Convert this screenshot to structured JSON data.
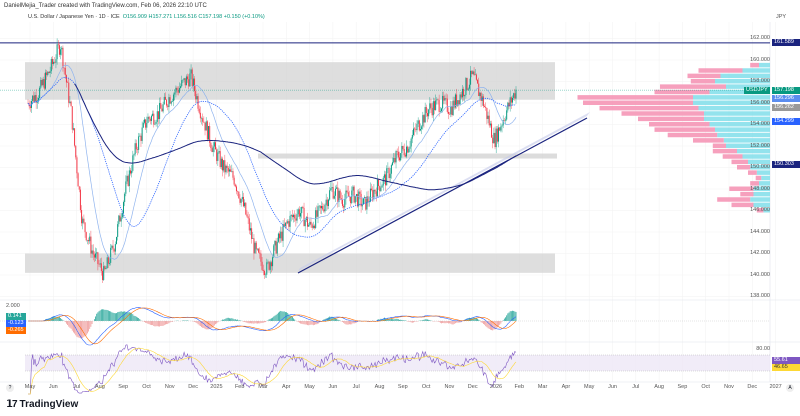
{
  "header": {
    "attribution": "DanielMejia_Trader created with TradingView.com, Feb 06, 2026 22:10 UTC"
  },
  "symbol": {
    "name": "U.S. Dollar / Japanese Yen · 1D · ICE",
    "open": "O156.909",
    "high": "H157.271",
    "low": "L156.516",
    "close": "C157.198",
    "change": "+0.150 (+0.10%)",
    "currency": "JPY"
  },
  "price_axis": {
    "ticks": [
      "162.000",
      "160.000",
      "158.000",
      "156.000",
      "154.000",
      "152.000",
      "150.000",
      "148.000",
      "146.000",
      "144.000",
      "142.000",
      "140.000",
      "138.000"
    ],
    "labels": [
      {
        "text": "161.589",
        "color": "#1a237e",
        "price": 161.589
      },
      {
        "text": "USDJPY",
        "color": "#089981",
        "price": 157.198,
        "prefix": true
      },
      {
        "text": "157.198",
        "color": "#089981",
        "price": 157.198
      },
      {
        "text": "156.296",
        "color": "#5b8def",
        "price": 156.4
      },
      {
        "text": "156.262",
        "color": "#999999",
        "price": 155.6
      },
      {
        "text": "154.299",
        "color": "#2962ff",
        "price": 154.299
      },
      {
        "text": "150.303",
        "color": "#1a237e",
        "price": 150.303
      }
    ]
  },
  "macd": {
    "top_tick": "2.000",
    "labels": [
      {
        "text": "0.141",
        "color": "#26a69a"
      },
      {
        "text": "-0.123",
        "color": "#2962ff"
      },
      {
        "text": "-0.265",
        "color": "#ff6d00"
      }
    ]
  },
  "rsi": {
    "top_tick": "80.00",
    "labels": [
      {
        "text": "55.61",
        "color": "#7e57c2"
      },
      {
        "text": "46.65",
        "color": "#fdd835"
      }
    ]
  },
  "time_axis": [
    "May",
    "Jun",
    "Jul",
    "Aug",
    "Sep",
    "Oct",
    "Nov",
    "Dec",
    "2025",
    "Feb",
    "Mar",
    "Apr",
    "May",
    "Jun",
    "Jul",
    "Aug",
    "Sep",
    "Oct",
    "Nov",
    "Dec",
    "2026",
    "Feb",
    "Mar",
    "Apr",
    "May",
    "Jun",
    "Jul",
    "Aug",
    "Sep",
    "Oct",
    "Nov",
    "Dec",
    "2027"
  ],
  "price_path": [
    156,
    157,
    159,
    161.5,
    155,
    145,
    142,
    140,
    143,
    148,
    152,
    154.5,
    155,
    156.5,
    157.5,
    158.5,
    155,
    152,
    150,
    149,
    146,
    142,
    140.5,
    143,
    145,
    146,
    144.5,
    146,
    148,
    147,
    147.5,
    146.5,
    148,
    149,
    151,
    152,
    154,
    155.5,
    156,
    155.5,
    157,
    158.5,
    156,
    152.5,
    155,
    157.2
  ],
  "volume_profile": {
    "levels": [
      159.5,
      159,
      158.5,
      158,
      157.5,
      157,
      156.5,
      156,
      155.5,
      155,
      154.5,
      154,
      153.5,
      153,
      152.5,
      152,
      151.5,
      151,
      150.5,
      150,
      149.5,
      149,
      148.5,
      148,
      147.5,
      147,
      146.5,
      146
    ],
    "sell": [
      8,
      40,
      30,
      22,
      60,
      50,
      105,
      100,
      90,
      75,
      60,
      55,
      55,
      45,
      28,
      12,
      22,
      18,
      15,
      12,
      8,
      5,
      8,
      22,
      12,
      30,
      20,
      6
    ],
    "buy": [
      10,
      25,
      45,
      50,
      40,
      55,
      70,
      70,
      65,
      60,
      60,
      55,
      50,
      48,
      42,
      40,
      30,
      25,
      20,
      18,
      12,
      8,
      10,
      15,
      15,
      18,
      15,
      6
    ]
  },
  "colors": {
    "up": "#089981",
    "down": "#f23645",
    "zone": "#d3d3d3",
    "trend": "#1a237e",
    "ma_dotted": "#2962ff",
    "ma_light": "#90b4ee",
    "vp_sell": "#f48fb1",
    "vp_buy": "#80deea"
  },
  "footer": {
    "logo": "TradingView"
  }
}
